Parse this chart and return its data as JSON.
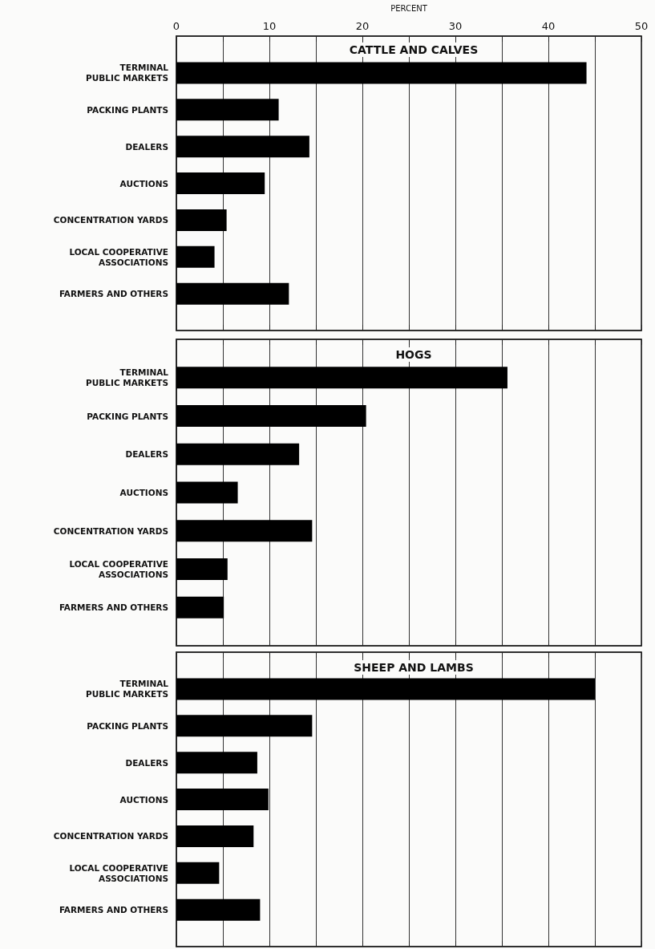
{
  "chart_data": [
    {
      "type": "bar",
      "orientation": "horizontal",
      "title": "CATTLE AND CALVES",
      "xlabel": "PERCENT",
      "categories": [
        "TERMINAL PUBLIC MARKETS",
        "PACKING PLANTS",
        "DEALERS",
        "AUCTIONS",
        "CONCENTRATION YARDS",
        "LOCAL COOPERATIVE ASSOCIATIONS",
        "FARMERS AND OTHERS"
      ],
      "values": [
        44.1,
        11.0,
        14.3,
        9.5,
        5.4,
        4.1,
        12.1
      ],
      "color": "#000000",
      "xlim": [
        0,
        50
      ],
      "xticks": [
        0,
        {
          "value": 5,
          "label": null
        },
        10,
        {
          "value": 15,
          "label": null
        },
        20,
        {
          "value": 25,
          "label": null
        },
        30,
        {
          "value": 35,
          "label": null
        },
        40,
        {
          "value": 45,
          "label": null
        },
        50
      ],
      "grid": "x"
    },
    {
      "type": "bar",
      "orientation": "horizontal",
      "title": "HOGS",
      "categories": [
        "TERMINAL PUBLIC MARKETS",
        "PACKING PLANTS",
        "DEALERS",
        "AUCTIONS",
        "CONCENTRATION YARDS",
        "LOCAL COOPERATIVE ASSOCIATIONS",
        "FARMERS AND OTHERS"
      ],
      "values": [
        35.6,
        20.4,
        13.2,
        6.6,
        14.6,
        5.5,
        5.1
      ],
      "color": "#000000",
      "xlim": [
        0,
        50
      ],
      "xticks": [
        0,
        {
          "value": 5,
          "label": null
        },
        10,
        {
          "value": 15,
          "label": null
        },
        20,
        {
          "value": 25,
          "label": null
        },
        30,
        {
          "value": 35,
          "label": null
        },
        40,
        {
          "value": 45,
          "label": null
        },
        50
      ],
      "grid": "x",
      "tick_labels": "y"
    },
    {
      "type": "bar",
      "orientation": "horizontal",
      "title": "SHEEP AND LAMBS",
      "categories": [
        "TERMINAL PUBLIC MARKETS",
        "PACKING PLANTS",
        "DEALERS",
        "AUCTIONS",
        "CONCENTRATION YARDS",
        "LOCAL COOPERATIVE ASSOCIATIONS",
        "FARMERS AND OTHERS"
      ],
      "values": [
        45.0,
        14.6,
        8.7,
        9.9,
        8.3,
        4.6,
        9.0
      ],
      "color": "#000000",
      "xlim": [
        0,
        50
      ],
      "xticks": [
        0,
        {
          "value": 5,
          "label": null
        },
        10,
        {
          "value": 15,
          "label": null
        },
        20,
        {
          "value": 25,
          "label": null
        },
        30,
        {
          "value": 35,
          "label": null
        },
        40,
        {
          "value": 45,
          "label": null
        },
        50
      ],
      "grid": "x",
      "tick_labels": "y"
    }
  ]
}
